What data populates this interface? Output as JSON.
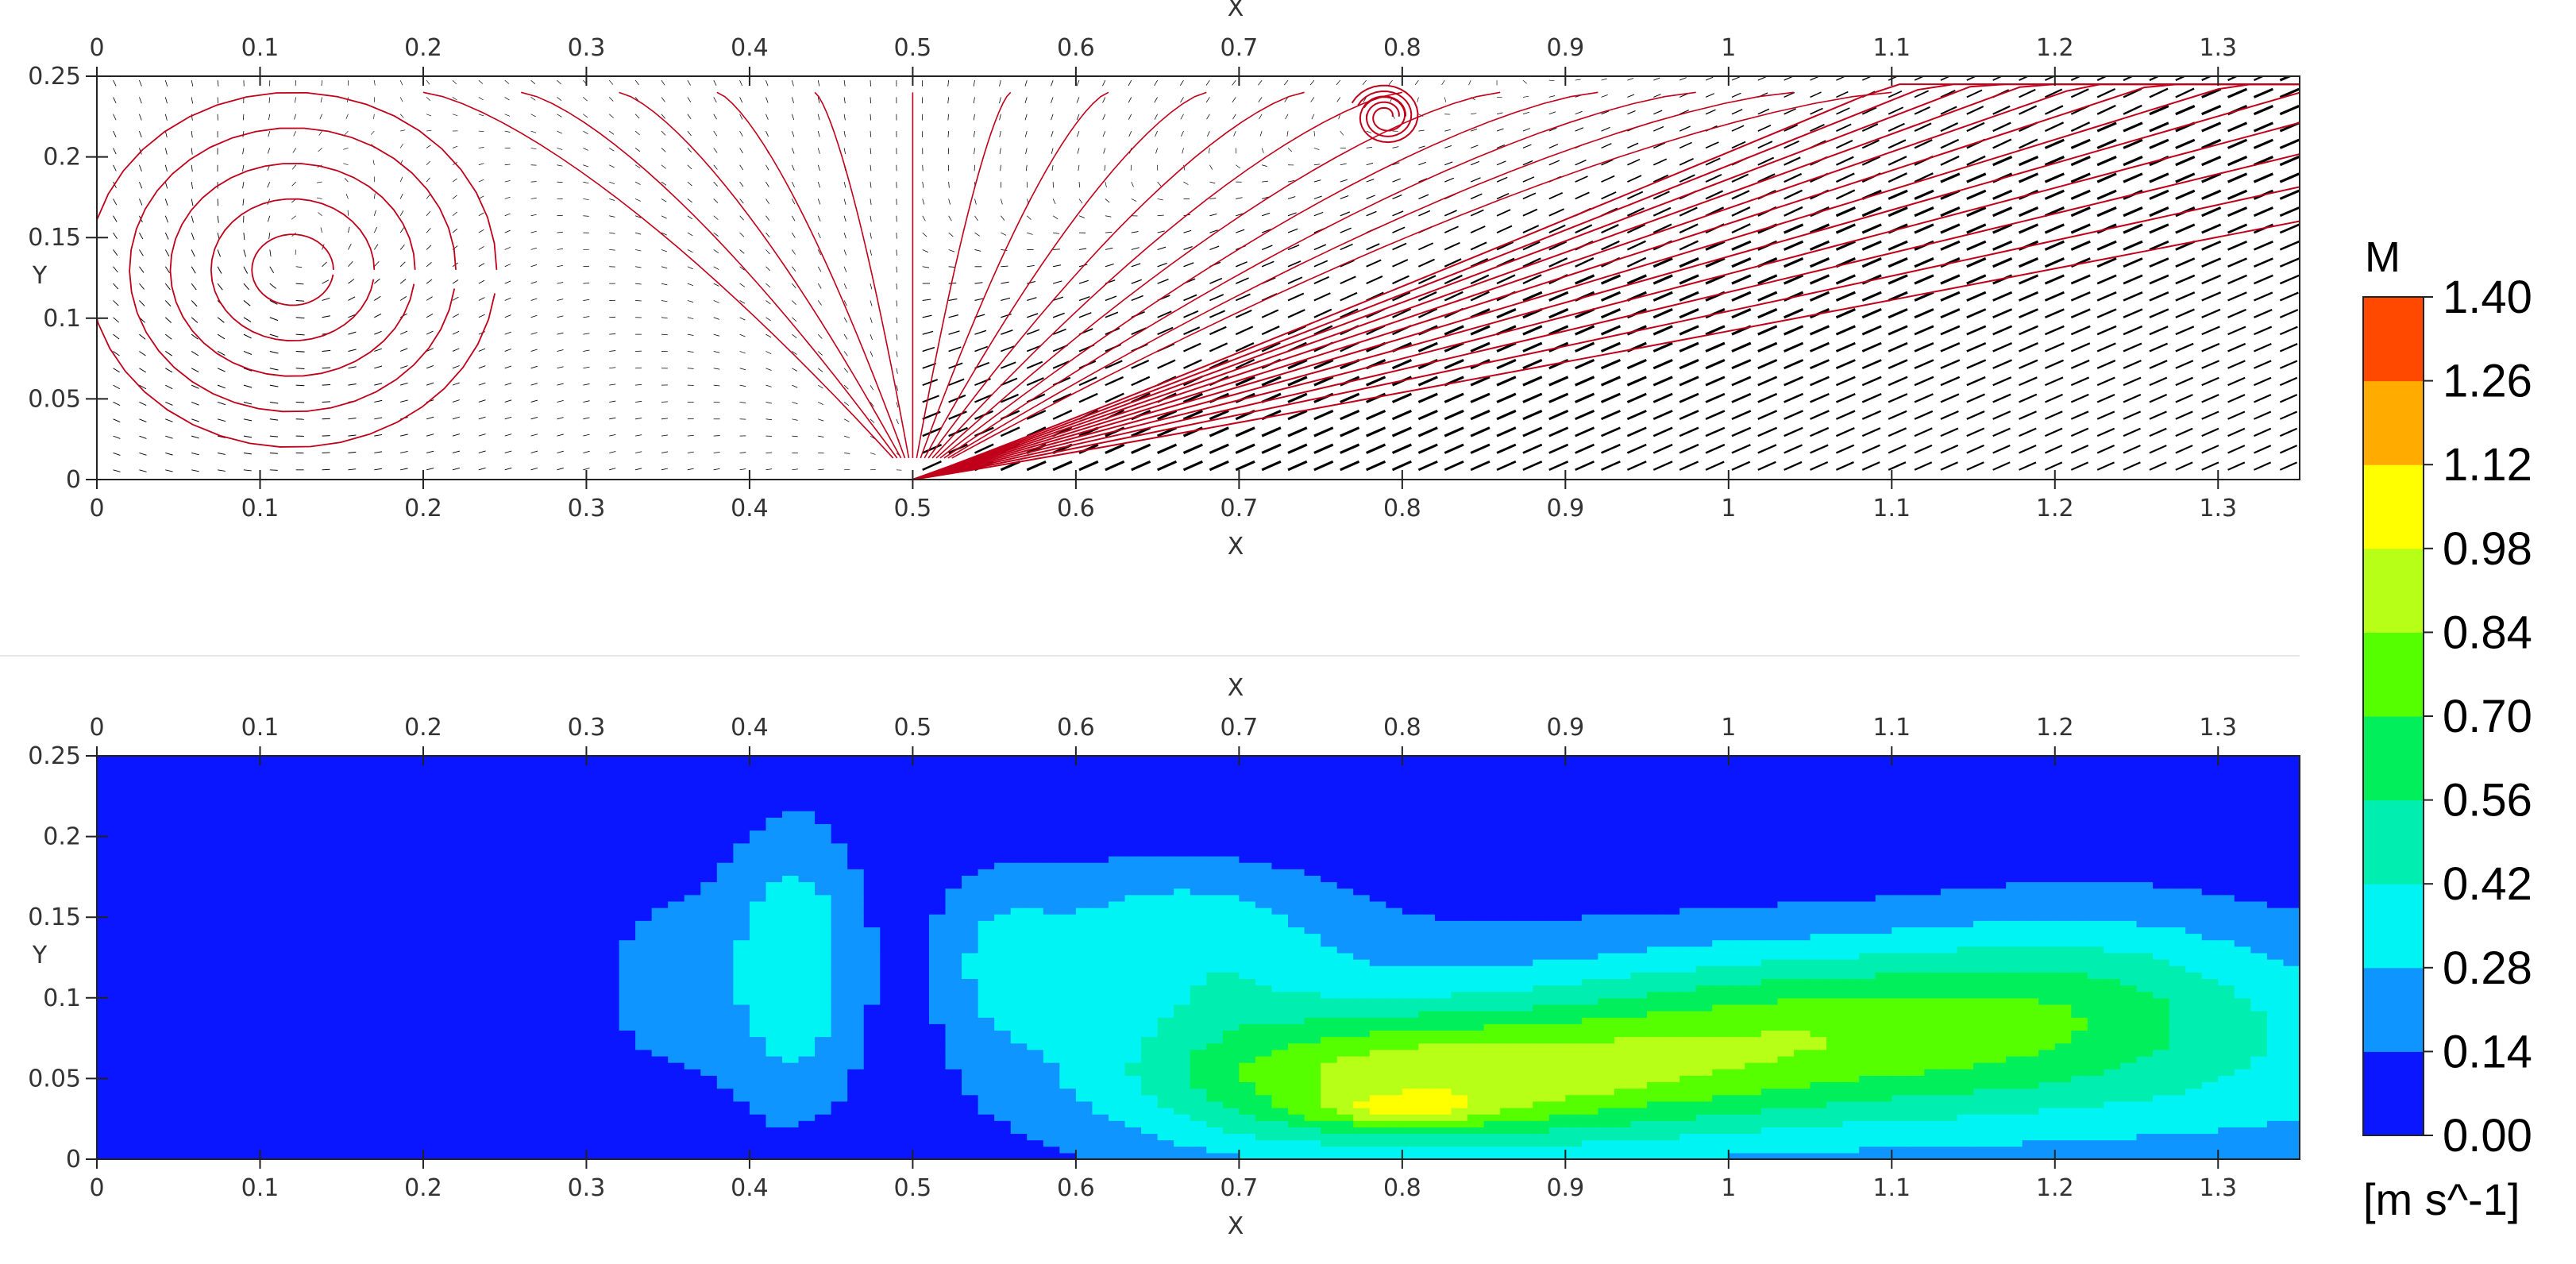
{
  "chart_data": [
    {
      "type": "vector-field",
      "panel": "streamlines and velocity vectors",
      "xlabel": "X",
      "ylabel": "Y",
      "xlim": [
        0,
        1.35
      ],
      "ylim": [
        0,
        0.25
      ],
      "xticks": [
        "0",
        "0.1",
        "0.2",
        "0.3",
        "0.4",
        "0.5",
        "0.6",
        "0.7",
        "0.8",
        "0.9",
        "1",
        "1.1",
        "1.2",
        "1.3"
      ],
      "yticks": [
        "0",
        "0.05",
        "0.1",
        "0.15",
        "0.2",
        "0.25"
      ],
      "vector_color": "#000000",
      "streamline_color": "#c0001a",
      "jet_inlet_x": 0.5,
      "jet_direction_slope": 0.3,
      "recirculation_vortex": {
        "x": 0.12,
        "y": 0.13
      },
      "secondary_vortex": {
        "x": 0.79,
        "y": 0.225
      },
      "grid": false
    },
    {
      "type": "heatmap",
      "panel": "velocity magnitude contour",
      "xlabel": "X",
      "ylabel": "Y",
      "xlim": [
        0,
        1.35
      ],
      "ylim": [
        0,
        0.25
      ],
      "xticks": [
        "0",
        "0.1",
        "0.2",
        "0.3",
        "0.4",
        "0.5",
        "0.6",
        "0.7",
        "0.8",
        "0.9",
        "1",
        "1.1",
        "1.2",
        "1.3"
      ],
      "yticks": [
        "0",
        "0.05",
        "0.1",
        "0.15",
        "0.2",
        "0.25"
      ],
      "hotspots": [
        {
          "x": 0.19,
          "y": 0.12,
          "sx": 0.09,
          "sy": 0.09,
          "v": -0.2
        },
        {
          "x": 0.35,
          "y": 0.11,
          "sx": 0.08,
          "sy": 0.08,
          "v": 0.16
        },
        {
          "x": 0.43,
          "y": 0.12,
          "sx": 0.04,
          "sy": 0.09,
          "v": 0.32
        },
        {
          "x": 0.55,
          "y": 0.12,
          "sx": 0.04,
          "sy": 0.06,
          "v": 0.2
        },
        {
          "x": 0.66,
          "y": 0.14,
          "sx": 0.1,
          "sy": 0.05,
          "v": 0.28
        },
        {
          "x": 0.82,
          "y": 0.05,
          "sx": 0.17,
          "sy": 0.04,
          "v": 0.62
        },
        {
          "x": 0.8,
          "y": 0.03,
          "sx": 0.05,
          "sy": 0.01,
          "v": 0.3
        },
        {
          "x": 1.05,
          "y": 0.08,
          "sx": 0.16,
          "sy": 0.05,
          "v": 0.45
        },
        {
          "x": 1.22,
          "y": 0.1,
          "sx": 0.12,
          "sy": 0.06,
          "v": 0.28
        },
        {
          "x": 0.93,
          "y": 0.22,
          "sx": 0.25,
          "sy": 0.03,
          "v": -0.12
        },
        {
          "x": 0.48,
          "y": 0.0,
          "sx": 0.03,
          "sy": 0.02,
          "v": -0.15
        }
      ],
      "baseline": 0.03,
      "grid": false
    }
  ],
  "colorbar": {
    "title": "M",
    "units": "[m s^-1]",
    "tick_labels": [
      "1.40",
      "1.26",
      "1.12",
      "0.98",
      "0.84",
      "0.70",
      "0.56",
      "0.42",
      "0.28",
      "0.14",
      "0.00"
    ],
    "levels": [
      0.0,
      0.14,
      0.28,
      0.42,
      0.56,
      0.7,
      0.84,
      0.98,
      1.12,
      1.26,
      1.4
    ],
    "colors": [
      "#0a16ff",
      "#0f95ff",
      "#00f4f4",
      "#00eeb0",
      "#00ef5a",
      "#55ff00",
      "#b8ff18",
      "#ffff00",
      "#ffab00",
      "#ff4800"
    ]
  }
}
